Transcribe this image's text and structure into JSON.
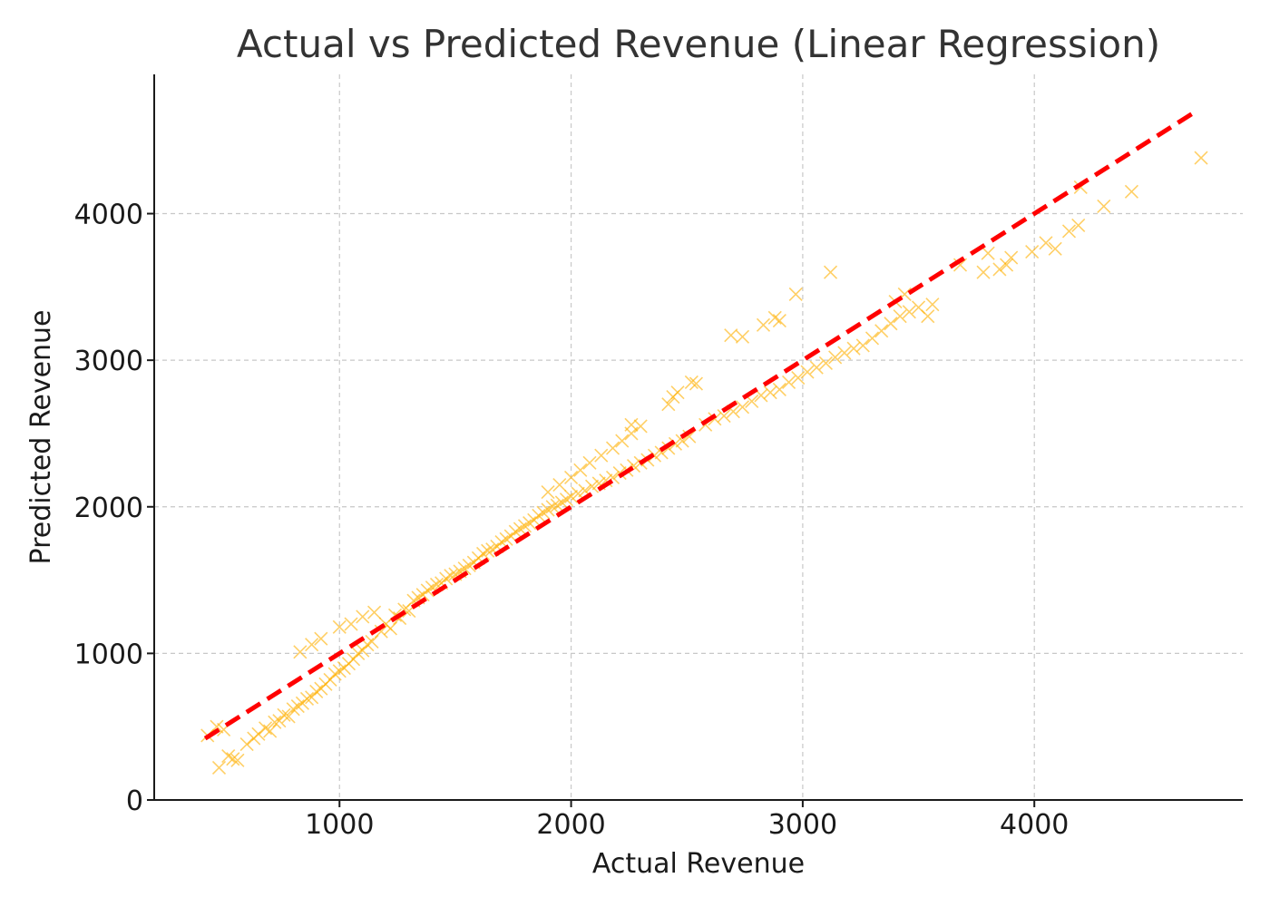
{
  "chart_data": {
    "type": "scatter",
    "title": "Actual vs Predicted Revenue (Linear Regression)",
    "xlabel": "Actual Revenue",
    "ylabel": "Predicted Revenue",
    "xlim": [
      200,
      4900
    ],
    "ylim": [
      0,
      4950
    ],
    "xticks": [
      1000,
      2000,
      3000,
      4000
    ],
    "yticks": [
      0,
      1000,
      2000,
      3000,
      4000
    ],
    "xtick_labels": [
      "1000",
      "2000",
      "3000",
      "4000"
    ],
    "ytick_labels": [
      "0",
      "1000",
      "2000",
      "3000",
      "4000"
    ],
    "grid": true,
    "legend": "none",
    "colors": {
      "points": "#ffb000",
      "reference_line": "#ff0000"
    },
    "series": [
      {
        "marker": "x",
        "points": [
          [
            430,
            440
          ],
          [
            470,
            500
          ],
          [
            480,
            220
          ],
          [
            500,
            480
          ],
          [
            520,
            300
          ],
          [
            540,
            280
          ],
          [
            560,
            270
          ],
          [
            600,
            380
          ],
          [
            630,
            420
          ],
          [
            650,
            450
          ],
          [
            680,
            490
          ],
          [
            700,
            470
          ],
          [
            720,
            530
          ],
          [
            740,
            540
          ],
          [
            760,
            580
          ],
          [
            780,
            570
          ],
          [
            800,
            620
          ],
          [
            820,
            640
          ],
          [
            840,
            660
          ],
          [
            860,
            690
          ],
          [
            880,
            700
          ],
          [
            900,
            740
          ],
          [
            920,
            760
          ],
          [
            940,
            790
          ],
          [
            960,
            820
          ],
          [
            980,
            860
          ],
          [
            1000,
            880
          ],
          [
            1020,
            900
          ],
          [
            1040,
            930
          ],
          [
            1060,
            960
          ],
          [
            1080,
            1000
          ],
          [
            1100,
            1020
          ],
          [
            1120,
            1060
          ],
          [
            1140,
            1080
          ],
          [
            830,
            1010
          ],
          [
            880,
            1060
          ],
          [
            920,
            1100
          ],
          [
            1000,
            1180
          ],
          [
            1050,
            1200
          ],
          [
            1100,
            1250
          ],
          [
            1150,
            1280
          ],
          [
            1180,
            1150
          ],
          [
            1200,
            1200
          ],
          [
            1220,
            1170
          ],
          [
            1240,
            1260
          ],
          [
            1260,
            1240
          ],
          [
            1280,
            1300
          ],
          [
            1300,
            1290
          ],
          [
            1320,
            1360
          ],
          [
            1340,
            1380
          ],
          [
            1360,
            1400
          ],
          [
            1380,
            1430
          ],
          [
            1400,
            1450
          ],
          [
            1420,
            1470
          ],
          [
            1440,
            1480
          ],
          [
            1460,
            1510
          ],
          [
            1480,
            1530
          ],
          [
            1500,
            1540
          ],
          [
            1520,
            1560
          ],
          [
            1540,
            1580
          ],
          [
            1560,
            1600
          ],
          [
            1580,
            1620
          ],
          [
            1600,
            1650
          ],
          [
            1620,
            1680
          ],
          [
            1640,
            1700
          ],
          [
            1660,
            1710
          ],
          [
            1680,
            1730
          ],
          [
            1700,
            1760
          ],
          [
            1720,
            1780
          ],
          [
            1740,
            1800
          ],
          [
            1760,
            1830
          ],
          [
            1780,
            1850
          ],
          [
            1800,
            1870
          ],
          [
            1820,
            1890
          ],
          [
            1840,
            1910
          ],
          [
            1860,
            1940
          ],
          [
            1880,
            1960
          ],
          [
            1900,
            1980
          ],
          [
            1920,
            2000
          ],
          [
            1940,
            2010
          ],
          [
            1960,
            2030
          ],
          [
            1980,
            2050
          ],
          [
            2000,
            2070
          ],
          [
            2030,
            2090
          ],
          [
            2060,
            2110
          ],
          [
            2090,
            2140
          ],
          [
            2120,
            2160
          ],
          [
            2150,
            2180
          ],
          [
            2180,
            2200
          ],
          [
            2210,
            2230
          ],
          [
            2240,
            2250
          ],
          [
            2270,
            2280
          ],
          [
            2300,
            2300
          ],
          [
            2330,
            2320
          ],
          [
            2360,
            2350
          ],
          [
            2390,
            2370
          ],
          [
            2420,
            2400
          ],
          [
            2450,
            2430
          ],
          [
            2480,
            2450
          ],
          [
            2510,
            2480
          ],
          [
            1900,
            2100
          ],
          [
            1950,
            2150
          ],
          [
            2000,
            2200
          ],
          [
            2040,
            2250
          ],
          [
            2080,
            2300
          ],
          [
            2130,
            2350
          ],
          [
            2180,
            2400
          ],
          [
            2220,
            2450
          ],
          [
            2260,
            2500
          ],
          [
            2300,
            2550
          ],
          [
            2260,
            2560
          ],
          [
            2420,
            2700
          ],
          [
            2440,
            2750
          ],
          [
            2460,
            2780
          ],
          [
            2520,
            2850
          ],
          [
            2540,
            2840
          ],
          [
            2580,
            2560
          ],
          [
            2620,
            2600
          ],
          [
            2660,
            2620
          ],
          [
            2700,
            2650
          ],
          [
            2740,
            2680
          ],
          [
            2780,
            2720
          ],
          [
            2820,
            2760
          ],
          [
            2860,
            2780
          ],
          [
            2900,
            2800
          ],
          [
            2940,
            2850
          ],
          [
            2980,
            2880
          ],
          [
            3020,
            2920
          ],
          [
            3060,
            2950
          ],
          [
            3100,
            2980
          ],
          [
            3140,
            3020
          ],
          [
            3180,
            3050
          ],
          [
            3220,
            3080
          ],
          [
            3260,
            3100
          ],
          [
            2690,
            3170
          ],
          [
            2740,
            3160
          ],
          [
            2830,
            3240
          ],
          [
            2880,
            3290
          ],
          [
            2900,
            3270
          ],
          [
            2970,
            3450
          ],
          [
            3120,
            3600
          ],
          [
            3300,
            3150
          ],
          [
            3340,
            3200
          ],
          [
            3380,
            3250
          ],
          [
            3420,
            3300
          ],
          [
            3460,
            3330
          ],
          [
            3500,
            3360
          ],
          [
            3540,
            3300
          ],
          [
            3560,
            3380
          ],
          [
            3400,
            3400
          ],
          [
            3440,
            3450
          ],
          [
            3680,
            3650
          ],
          [
            3780,
            3600
          ],
          [
            3800,
            3730
          ],
          [
            3850,
            3620
          ],
          [
            3880,
            3650
          ],
          [
            3900,
            3700
          ],
          [
            3990,
            3740
          ],
          [
            4050,
            3800
          ],
          [
            4090,
            3760
          ],
          [
            4150,
            3880
          ],
          [
            4190,
            3920
          ],
          [
            4200,
            4180
          ],
          [
            4300,
            4050
          ],
          [
            4420,
            4150
          ],
          [
            4720,
            4380
          ]
        ]
      }
    ],
    "reference_line": {
      "style": "dashed",
      "x": [
        420,
        4700
      ],
      "y": [
        420,
        4700
      ]
    }
  }
}
